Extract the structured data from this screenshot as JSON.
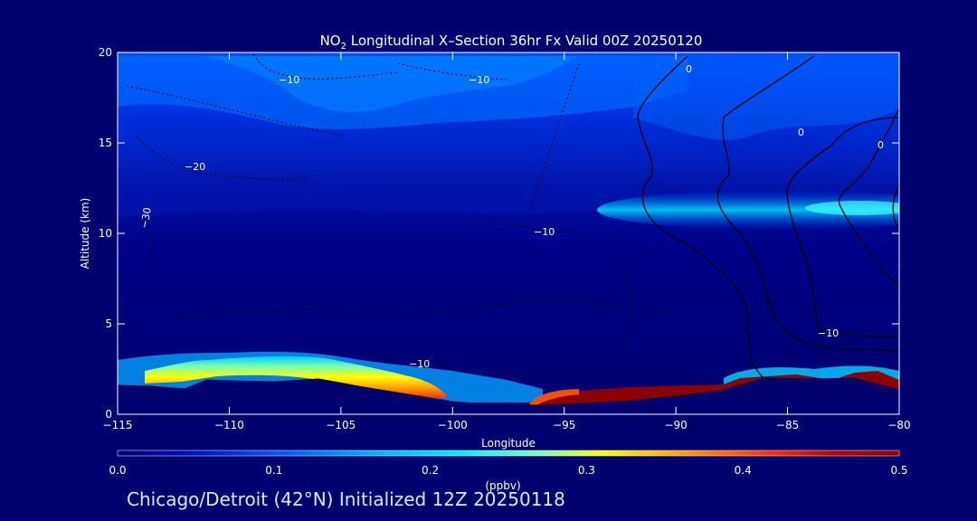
{
  "title": {
    "prefix": "NO",
    "subscript": "2",
    "rest": " Longitudinal X–Section 36hr  Fx Valid 00Z 20250120"
  },
  "footer": "Chicago/Detroit (42°N) Initialized 12Z 20250118",
  "colors": {
    "background": "#00006e",
    "plot_background": "#00006e",
    "contour_line": "#000000",
    "axis": "#ffffff"
  },
  "chart_data": {
    "type": "heatmap",
    "xlabel": "Longitude",
    "ylabel": "Altitude (km)",
    "xlim": [
      -115,
      -80
    ],
    "ylim": [
      0,
      20
    ],
    "xticks": [
      -115,
      -110,
      -105,
      -100,
      -95,
      -90,
      -85,
      -80
    ],
    "xtick_labels": [
      "−115",
      "−110",
      "−105",
      "−100",
      "−95",
      "−90",
      "−85",
      "−80"
    ],
    "yticks": [
      0,
      5,
      10,
      15,
      20
    ],
    "ytick_labels": [
      "0",
      "5",
      "10",
      "15",
      "20"
    ],
    "colorbar": {
      "label": "(ppbv)",
      "range": [
        0.0,
        0.5
      ],
      "ticks": [
        0.0,
        0.1,
        0.2,
        0.3,
        0.4,
        0.5
      ],
      "tick_labels": [
        "0.0",
        "0.1",
        "0.2",
        "0.3",
        "0.4",
        "0.5"
      ],
      "position": "bottom",
      "stops": [
        {
          "value": 0.0,
          "color": "#00006e"
        },
        {
          "value": 0.05,
          "color": "#0010c8"
        },
        {
          "value": 0.1,
          "color": "#0050ff"
        },
        {
          "value": 0.17,
          "color": "#00b8ff"
        },
        {
          "value": 0.22,
          "color": "#00f0ff"
        },
        {
          "value": 0.27,
          "color": "#7dffb0"
        },
        {
          "value": 0.31,
          "color": "#ffff00"
        },
        {
          "value": 0.36,
          "color": "#ffa000"
        },
        {
          "value": 0.42,
          "color": "#ff2a00"
        },
        {
          "value": 0.46,
          "color": "#b40000"
        },
        {
          "value": 0.5,
          "color": "#8c0000"
        }
      ]
    },
    "surface_profile": {
      "lon": [
        -115,
        -113.5,
        -112,
        -111,
        -110,
        -108,
        -106,
        -104,
        -102,
        -100,
        -98,
        -96,
        -94,
        -92,
        -90,
        -88,
        -86,
        -84,
        -82,
        -80
      ],
      "alt": [
        1.6,
        1.55,
        1.4,
        1.9,
        1.85,
        1.8,
        1.95,
        1.5,
        1.1,
        0.7,
        0.5,
        0.5,
        0.6,
        0.75,
        1.0,
        1.3,
        2.0,
        1.95,
        2.0,
        1.35
      ]
    },
    "no2_field": [
      {
        "name": "upper",
        "alt_range": [
          13,
          20
        ],
        "value": 0.09
      },
      {
        "name": "jet",
        "alt_range": [
          10.5,
          12.5
        ],
        "lon_range": [
          -92,
          -80
        ],
        "value": 0.18
      },
      {
        "name": "mid",
        "alt_range": [
          5,
          13
        ],
        "value": 0.03
      },
      {
        "name": "boundary_layer_west",
        "lon_range": [
          -115,
          -97
        ],
        "value": 0.33
      },
      {
        "name": "boundary_layer_east",
        "lon_range": [
          -96,
          -80
        ],
        "value": 0.48
      }
    ],
    "contour_labels": [
      "−10",
      "−10",
      "−20",
      "−30",
      "−10",
      "−10",
      "0",
      "0",
      "0",
      "−10"
    ]
  }
}
